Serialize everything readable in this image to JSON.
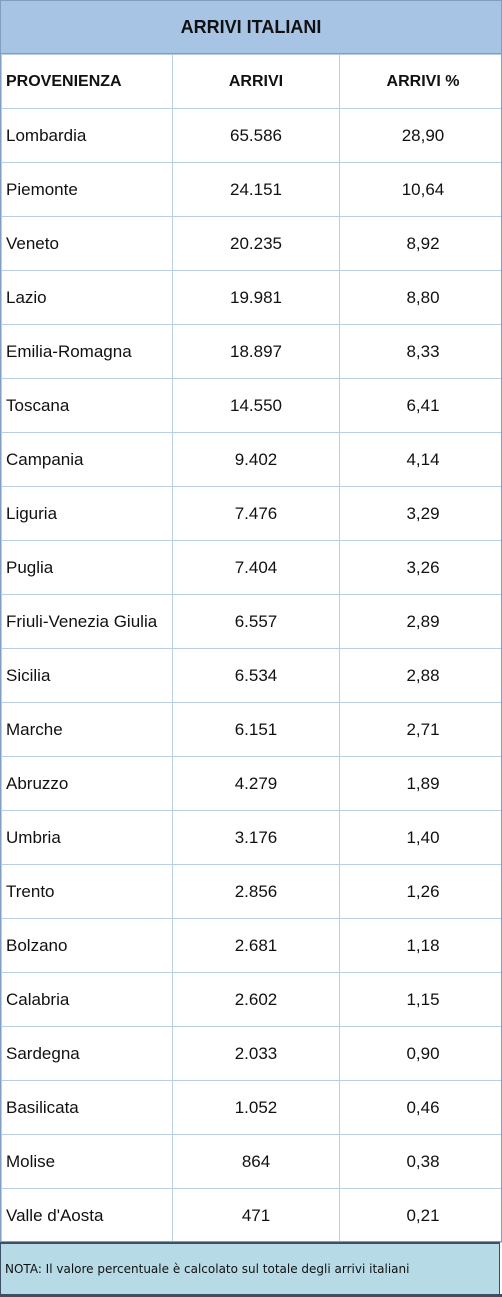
{
  "title": "ARRIVI ITALIANI",
  "headers": [
    "PROVENIENZA",
    "ARRIVI",
    "ARRIVI %"
  ],
  "rows": [
    [
      "Lombardia",
      "65.586",
      "28,90"
    ],
    [
      "Piemonte",
      "24.151",
      "10,64"
    ],
    [
      "Veneto",
      "20.235",
      "8,92"
    ],
    [
      "Lazio",
      "19.981",
      "8,80"
    ],
    [
      "Emilia-Romagna",
      "18.897",
      "8,33"
    ],
    [
      "Toscana",
      "14.550",
      "6,41"
    ],
    [
      "Campania",
      "9.402",
      "4,14"
    ],
    [
      "Liguria",
      "7.476",
      "3,29"
    ],
    [
      "Puglia",
      "7.404",
      "3,26"
    ],
    [
      "Friuli-Venezia Giulia",
      "6.557",
      "2,89"
    ],
    [
      "Sicilia",
      "6.534",
      "2,88"
    ],
    [
      "Marche",
      "6.151",
      "2,71"
    ],
    [
      "Abruzzo",
      "4.279",
      "1,89"
    ],
    [
      "Umbria",
      "3.176",
      "1,40"
    ],
    [
      "Trento",
      "2.856",
      "1,26"
    ],
    [
      "Bolzano",
      "2.681",
      "1,18"
    ],
    [
      "Calabria",
      "2.602",
      "1,15"
    ],
    [
      "Sardegna",
      "2.033",
      "0,90"
    ],
    [
      "Basilicata",
      "1.052",
      "0,46"
    ],
    [
      "Molise",
      "864",
      "0,38"
    ],
    [
      "Valle d'Aosta",
      "471",
      "0,21"
    ]
  ],
  "note": "NOTA: Il valore percentuale è calcolato sul totale degli arrivi italiani",
  "colors": {
    "title_bg": "#a7c4e5",
    "note_bg": "#b7dbe6",
    "grid_line": "#b9cde4",
    "border_dark": "#3d4f66"
  }
}
